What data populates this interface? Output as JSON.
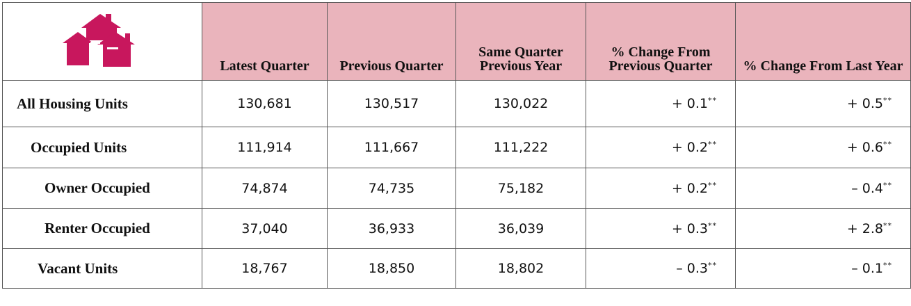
{
  "table": {
    "columns": [
      "Latest Quarter",
      "Previous Quarter",
      "Same Quarter Previous Year",
      "% Change From Previous Quarter",
      "% Change From Last Year"
    ],
    "rows": [
      {
        "label": "All Housing Units",
        "cells": [
          "130,681",
          "130,517",
          "130,022",
          {
            "text": "+ 0.1",
            "note": "**"
          },
          {
            "text": "+ 0.5",
            "note": "**"
          }
        ]
      },
      {
        "label": "Occupied Units",
        "cells": [
          "111,914",
          "111,667",
          "111,222",
          {
            "text": "+ 0.2",
            "note": "**"
          },
          {
            "text": "+ 0.6",
            "note": "**"
          }
        ]
      },
      {
        "label": "Owner Occupied",
        "cells": [
          "74,874",
          "74,735",
          "75,182",
          {
            "text": "+ 0.2",
            "note": "**"
          },
          {
            "text": "– 0.4",
            "note": "**"
          }
        ]
      },
      {
        "label": "Renter Occupied",
        "cells": [
          "37,040",
          "36,933",
          "36,039",
          {
            "text": "+ 0.3",
            "note": "**"
          },
          {
            "text": "+ 2.8",
            "note": "**"
          }
        ]
      },
      {
        "label": "Vacant Units",
        "cells": [
          "18,767",
          "18,850",
          "18,802",
          {
            "text": "– 0.3",
            "note": "**"
          },
          {
            "text": "– 0.1",
            "note": "**"
          }
        ]
      }
    ]
  }
}
